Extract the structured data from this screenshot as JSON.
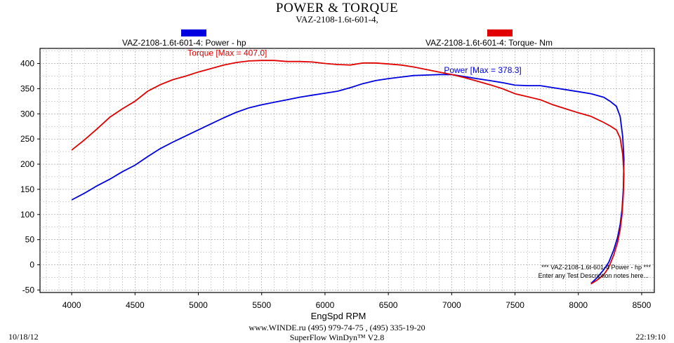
{
  "header": {
    "title": "POWER & TORQUE",
    "subtitle": "VAZ-2108-1.6t-601-4,"
  },
  "legend": {
    "power": {
      "label": "VAZ-2108-1.6t-601-4: Power -  hp",
      "color": "#0000e0"
    },
    "torque": {
      "label": "VAZ-2108-1.6t-601-4: Torque-  Nm",
      "color": "#e00000"
    }
  },
  "note": {
    "line1": "*** VAZ-2108-1.6t-601-4 Power -  hp   ***",
    "line2": "Enter any Test Description notes here..."
  },
  "footer": {
    "date": "10/18/12",
    "contact": "www.WINDE.ru  (495) 979-74-75 , (495) 335-19-20",
    "software": "SuperFlow WinDyn™ V2.8",
    "time": "22:19:10"
  },
  "chart_data": {
    "type": "line",
    "title": "POWER & TORQUE",
    "subtitle": "VAZ-2108-1.6t-601-4,",
    "xlabel": "EngSpd  RPM",
    "ylabel": "",
    "xlim": [
      3750,
      8600
    ],
    "ylim": [
      -55,
      430
    ],
    "xticks": [
      4000,
      4500,
      5000,
      5500,
      6000,
      6500,
      7000,
      7500,
      8000,
      8500
    ],
    "yticks": [
      -50,
      0,
      50,
      100,
      150,
      200,
      250,
      300,
      350,
      400
    ],
    "grid": true,
    "legend_position": "top",
    "annotations": [
      {
        "text": "Torque [Max = 407.0]",
        "series": "torque",
        "x": 5470,
        "y": 407
      },
      {
        "text": "Power  [Max = 378.3]",
        "series": "power",
        "x": 6950,
        "y": 378.3
      }
    ],
    "series": [
      {
        "name": "VAZ-2108-1.6t-601-4: Power -  hp",
        "key": "power",
        "color": "#0000e0",
        "x": [
          4000,
          4100,
          4200,
          4300,
          4400,
          4500,
          4600,
          4700,
          4800,
          4900,
          5000,
          5100,
          5200,
          5300,
          5400,
          5500,
          5600,
          5700,
          5800,
          5900,
          6000,
          6100,
          6200,
          6300,
          6400,
          6500,
          6600,
          6700,
          6800,
          6900,
          7000,
          7100,
          7200,
          7300,
          7400,
          7500,
          7600,
          7700,
          7800,
          7900,
          8000,
          8100,
          8200,
          8250,
          8300,
          8330,
          8350,
          8360,
          8355,
          8345,
          8330,
          8310,
          8280,
          8240,
          8200,
          8150,
          8100
        ],
        "y": [
          129,
          142,
          157,
          170,
          185,
          198,
          215,
          231,
          244,
          256,
          268,
          280,
          292,
          303,
          312,
          318,
          323,
          328,
          333,
          337,
          341,
          345,
          352,
          360,
          366,
          370,
          373,
          376,
          377,
          378,
          378,
          374,
          370,
          366,
          362,
          357,
          356,
          356,
          352,
          348,
          344,
          340,
          333,
          325,
          315,
          295,
          255,
          210,
          150,
          110,
          80,
          55,
          30,
          5,
          -10,
          -25,
          -37
        ]
      },
      {
        "name": "VAZ-2108-1.6t-601-4: Torque-  Nm",
        "key": "torque",
        "color": "#e00000",
        "x": [
          4000,
          4100,
          4200,
          4300,
          4400,
          4500,
          4600,
          4700,
          4800,
          4900,
          5000,
          5100,
          5200,
          5300,
          5400,
          5500,
          5600,
          5700,
          5800,
          5900,
          6000,
          6100,
          6200,
          6300,
          6400,
          6500,
          6600,
          6700,
          6800,
          6900,
          7000,
          7100,
          7200,
          7300,
          7400,
          7500,
          7600,
          7700,
          7800,
          7900,
          8000,
          8100,
          8200,
          8250,
          8300,
          8330,
          8350,
          8360,
          8355,
          8345,
          8330,
          8310,
          8280,
          8240,
          8200,
          8150,
          8100
        ],
        "y": [
          228,
          248,
          270,
          293,
          310,
          325,
          345,
          358,
          368,
          375,
          383,
          390,
          397,
          402,
          405,
          406,
          406,
          404,
          404,
          403,
          400,
          398,
          397,
          401,
          401,
          399,
          397,
          393,
          388,
          383,
          378,
          372,
          365,
          358,
          350,
          340,
          334,
          328,
          318,
          310,
          302,
          295,
          283,
          276,
          268,
          252,
          220,
          180,
          140,
          100,
          70,
          45,
          20,
          -5,
          -20,
          -30,
          -38
        ]
      }
    ]
  }
}
